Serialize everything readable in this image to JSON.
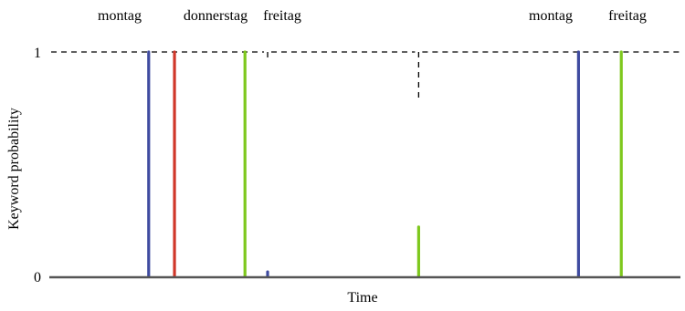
{
  "chart_data": {
    "type": "bar",
    "title": "",
    "xlabel": "Time",
    "ylabel": "Keyword probability",
    "ylim": [
      0,
      1
    ],
    "y_ticks": [
      "0",
      "1"
    ],
    "threshold": 1,
    "colors": {
      "montag": "#3f4ba0",
      "donnerstag": "#d0372a",
      "freitag": "#7ec81d",
      "threshold": "#000000",
      "axis": "#555555"
    },
    "top_labels": [
      "montag",
      "donnerstag",
      "freitag",
      "montag",
      "freitag"
    ],
    "detections": [
      {
        "keyword": "montag",
        "t": 0.155,
        "value": 1.0
      },
      {
        "keyword": "donnerstag",
        "t": 0.196,
        "value": 1.0
      },
      {
        "keyword": "freitag",
        "t": 0.308,
        "value": 1.0
      },
      {
        "keyword": "montag",
        "t": 0.344,
        "value": 0.02
      },
      {
        "keyword": "freitag",
        "t": 0.584,
        "value": 0.22
      },
      {
        "keyword": "montag",
        "t": 0.838,
        "value": 1.0
      },
      {
        "keyword": "freitag",
        "t": 0.906,
        "value": 1.0
      }
    ],
    "threshold_gaps": [
      {
        "t": 0.344,
        "low": 0.97
      },
      {
        "t": 0.584,
        "low": 0.79
      }
    ]
  }
}
